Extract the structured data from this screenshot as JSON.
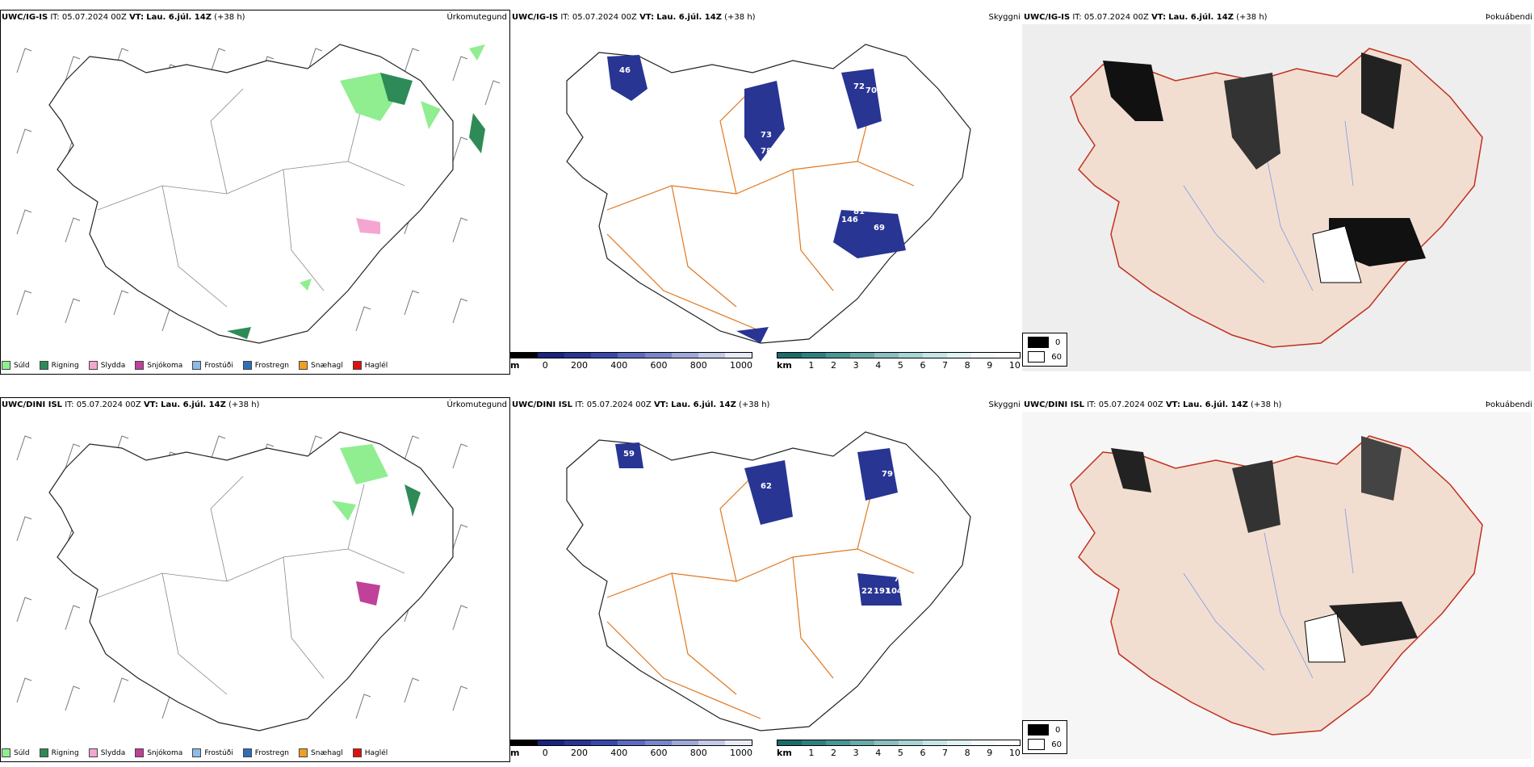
{
  "rows": [
    {
      "model": "UWC/IG-IS",
      "it": "IT: 05.07.2024 00Z",
      "vt_label": "VT:",
      "vt": "Lau. 6.júl. 14Z",
      "lead": "(+38 h)"
    },
    {
      "model": "UWC/DINI ISL",
      "it": "IT: 05.07.2024 00Z",
      "vt_label": "VT:",
      "vt": "Lau. 6.júl. 14Z",
      "lead": "(+38 h)"
    }
  ],
  "titles": {
    "precip": "Úrkomutegund",
    "ceiling": "Skyggni",
    "fog": "Þokuábendi"
  },
  "precip_legend": [
    {
      "label": "Súld",
      "color": "#90ee90"
    },
    {
      "label": "Rigning",
      "color": "#2e8b57"
    },
    {
      "label": "Slydda",
      "color": "#f4a6d0"
    },
    {
      "label": "Snjókoma",
      "color": "#c0409a"
    },
    {
      "label": "Frostúði",
      "color": "#8fbbe8"
    },
    {
      "label": "Frostregn",
      "color": "#2f6fb8"
    },
    {
      "label": "Snæhagl",
      "color": "#f0a020"
    },
    {
      "label": "Haglél",
      "color": "#e01010"
    }
  ],
  "ceiling_scale": {
    "unit": "m",
    "ticks": [
      "0",
      "200",
      "400",
      "600",
      "800",
      "1000"
    ]
  },
  "visibility_scale": {
    "unit": "km",
    "ticks": [
      "1",
      "2",
      "3",
      "4",
      "5",
      "6",
      "7",
      "8",
      "9",
      "10"
    ]
  },
  "fog_legend": {
    "values": [
      "0",
      "60"
    ]
  },
  "labels_top": [
    "46",
    "72",
    "70",
    "73",
    "78",
    "69",
    "85",
    "81",
    "146",
    "69",
    "76"
  ],
  "labels_bottom": [
    "59",
    "62",
    "79",
    "22",
    "191",
    "104",
    "72"
  ]
}
